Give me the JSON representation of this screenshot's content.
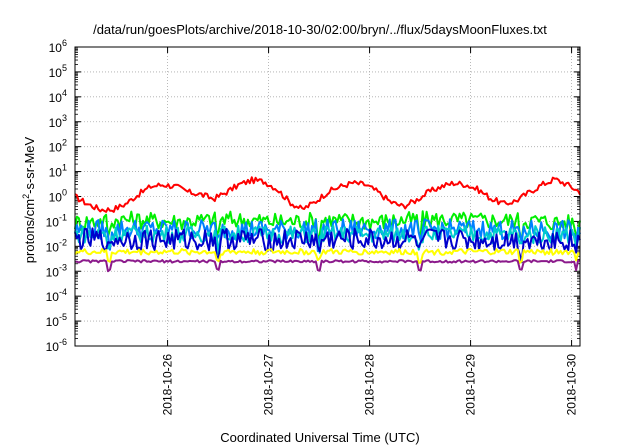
{
  "chart_data": {
    "type": "line",
    "title": "/data/run/goesPlots/archive/2018-10-30/02:00/bryn/../flux/5daysMoonFluxes.txt",
    "xlabel": "Coordinated Universal Time (UTC)",
    "ylabel": {
      "prefix": "protons/cm",
      "superscript": "2",
      "suffix": "-s-sr-MeV"
    },
    "yscale": "log",
    "ylim": [
      1e-06,
      1000000.0
    ],
    "yticks": [
      {
        "value": 1e-06,
        "base": "10",
        "exp": "-6"
      },
      {
        "value": 1e-05,
        "base": "10",
        "exp": "-5"
      },
      {
        "value": 0.0001,
        "base": "10",
        "exp": "-4"
      },
      {
        "value": 0.001,
        "base": "10",
        "exp": "-3"
      },
      {
        "value": 0.01,
        "base": "10",
        "exp": "-2"
      },
      {
        "value": 0.1,
        "base": "10",
        "exp": "-1"
      },
      {
        "value": 1,
        "base": "10",
        "exp": "0"
      },
      {
        "value": 10,
        "base": "10",
        "exp": "1"
      },
      {
        "value": 100,
        "base": "10",
        "exp": "2"
      },
      {
        "value": 1000.0,
        "base": "10",
        "exp": "3"
      },
      {
        "value": 10000.0,
        "base": "10",
        "exp": "4"
      },
      {
        "value": 100000.0,
        "base": "10",
        "exp": "5"
      },
      {
        "value": 1000000.0,
        "base": "10",
        "exp": "6"
      }
    ],
    "xlim": [
      "2018-10-25T02:00",
      "2018-10-30T02:00"
    ],
    "xticks": [
      {
        "value": "2018-10-26T00:00",
        "label": "2018-10-26"
      },
      {
        "value": "2018-10-27T00:00",
        "label": "2018-10-27"
      },
      {
        "value": "2018-10-28T00:00",
        "label": "2018-10-28"
      },
      {
        "value": "2018-10-29T00:00",
        "label": "2018-10-29"
      },
      {
        "value": "2018-10-30T00:00",
        "label": "2018-10-30"
      }
    ],
    "grid": true,
    "series": [
      {
        "color": "#ff0000",
        "x": [
          "2018-10-25T02:00",
          "2018-10-25T05:00",
          "2018-10-25T08:00",
          "2018-10-25T11:00",
          "2018-10-25T14:00",
          "2018-10-25T17:00",
          "2018-10-25T20:00",
          "2018-10-25T23:00",
          "2018-10-26T02:00",
          "2018-10-26T05:00",
          "2018-10-26T08:00",
          "2018-10-26T11:00",
          "2018-10-26T14:00",
          "2018-10-26T17:00",
          "2018-10-26T20:00",
          "2018-10-26T23:00",
          "2018-10-27T02:00",
          "2018-10-27T05:00",
          "2018-10-27T08:00",
          "2018-10-27T11:00",
          "2018-10-27T14:00",
          "2018-10-27T17:00",
          "2018-10-27T20:00",
          "2018-10-27T23:00",
          "2018-10-28T02:00",
          "2018-10-28T05:00",
          "2018-10-28T08:00",
          "2018-10-28T11:00",
          "2018-10-28T14:00",
          "2018-10-28T17:00",
          "2018-10-28T20:00",
          "2018-10-28T23:00",
          "2018-10-29T02:00",
          "2018-10-29T05:00",
          "2018-10-29T08:00",
          "2018-10-29T11:00",
          "2018-10-29T14:00",
          "2018-10-29T17:00",
          "2018-10-29T20:00",
          "2018-10-29T23:00",
          "2018-10-30T02:00"
        ],
        "values": [
          1.0,
          0.5,
          0.3,
          0.3,
          0.5,
          1.2,
          2.5,
          3.0,
          2.5,
          1.5,
          1.2,
          0.8,
          1.5,
          3.0,
          4.5,
          4.0,
          2.0,
          0.6,
          0.3,
          0.6,
          1.5,
          2.5,
          3.5,
          3.0,
          1.5,
          0.6,
          0.4,
          0.7,
          1.5,
          2.5,
          3.5,
          3.0,
          1.8,
          0.8,
          0.5,
          0.7,
          1.5,
          3.0,
          5.0,
          3.0,
          1.5
        ]
      },
      {
        "color": "#00ee00",
        "x": [
          "2018-10-25T02:00",
          "2018-10-25T14:00",
          "2018-10-26T02:00",
          "2018-10-26T14:00",
          "2018-10-27T02:00",
          "2018-10-27T14:00",
          "2018-10-28T02:00",
          "2018-10-28T14:00",
          "2018-10-29T02:00",
          "2018-10-29T14:00",
          "2018-10-30T02:00"
        ],
        "values": [
          0.09,
          0.12,
          0.1,
          0.12,
          0.1,
          0.11,
          0.1,
          0.12,
          0.11,
          0.11,
          0.08
        ]
      },
      {
        "color": "#0080ff",
        "x": [
          "2018-10-25T02:00",
          "2018-10-25T14:00",
          "2018-10-26T02:00",
          "2018-10-26T14:00",
          "2018-10-27T02:00",
          "2018-10-27T14:00",
          "2018-10-28T02:00",
          "2018-10-28T14:00",
          "2018-10-29T02:00",
          "2018-10-29T14:00",
          "2018-10-30T02:00"
        ],
        "values": [
          0.045,
          0.05,
          0.048,
          0.05,
          0.045,
          0.05,
          0.048,
          0.05,
          0.048,
          0.045,
          0.045
        ]
      },
      {
        "color": "#00cccc",
        "x": [
          "2018-10-25T02:00",
          "2018-10-25T14:00",
          "2018-10-26T02:00",
          "2018-10-26T14:00",
          "2018-10-27T02:00",
          "2018-10-27T14:00",
          "2018-10-28T02:00",
          "2018-10-28T14:00",
          "2018-10-29T02:00",
          "2018-10-29T14:00",
          "2018-10-30T02:00"
        ],
        "values": [
          0.03,
          0.032,
          0.03,
          0.032,
          0.03,
          0.031,
          0.03,
          0.032,
          0.03,
          0.03,
          0.03
        ]
      },
      {
        "color": "#0000cc",
        "x": [
          "2018-10-25T02:00",
          "2018-10-25T14:00",
          "2018-10-26T02:00",
          "2018-10-26T14:00",
          "2018-10-27T02:00",
          "2018-10-27T14:00",
          "2018-10-28T02:00",
          "2018-10-28T14:00",
          "2018-10-29T02:00",
          "2018-10-29T14:00",
          "2018-10-30T02:00"
        ],
        "values": [
          0.018,
          0.02,
          0.018,
          0.02,
          0.017,
          0.02,
          0.018,
          0.019,
          0.018,
          0.018,
          0.017
        ]
      },
      {
        "color": "#ffff00",
        "x": [
          "2018-10-25T02:00",
          "2018-10-25T14:00",
          "2018-10-26T02:00",
          "2018-10-26T14:00",
          "2018-10-27T02:00",
          "2018-10-27T14:00",
          "2018-10-28T02:00",
          "2018-10-28T14:00",
          "2018-10-29T02:00",
          "2018-10-29T14:00",
          "2018-10-30T02:00"
        ],
        "values": [
          0.006,
          0.006,
          0.006,
          0.006,
          0.006,
          0.006,
          0.006,
          0.006,
          0.006,
          0.006,
          0.006
        ]
      },
      {
        "color": "#8b1a8b",
        "x": [
          "2018-10-25T02:00",
          "2018-10-25T14:00",
          "2018-10-26T02:00",
          "2018-10-26T14:00",
          "2018-10-27T02:00",
          "2018-10-27T14:00",
          "2018-10-28T02:00",
          "2018-10-28T14:00",
          "2018-10-29T02:00",
          "2018-10-29T14:00",
          "2018-10-30T02:00"
        ],
        "values": [
          0.0025,
          0.0025,
          0.0025,
          0.0025,
          0.0025,
          0.0025,
          0.0025,
          0.0025,
          0.0025,
          0.0025,
          0.0025
        ]
      }
    ]
  }
}
